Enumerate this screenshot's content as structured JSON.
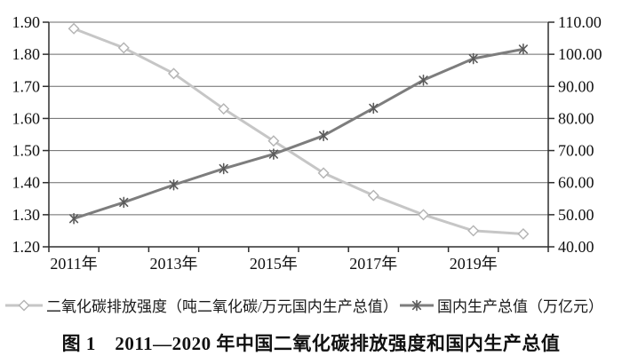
{
  "figure": {
    "caption": "图 1　2011—2020 年中国二氧化碳排放强度和国内生产总值"
  },
  "legend": {
    "items": [
      {
        "label": "二氧化碳排放强度（吨二氧化碳/万元国内生产总值）",
        "marker": "diamond",
        "line_color": "#c6c6c6",
        "marker_color": "#b3b3b3",
        "marker_fill": "#ffffff"
      },
      {
        "label": "国内生产总值（万亿元）",
        "marker": "asterisk",
        "line_color": "#7d7d7d",
        "marker_color": "#5a5a5a"
      }
    ]
  },
  "chart_data": {
    "type": "line",
    "categories": [
      "2011年",
      "2012年",
      "2013年",
      "2014年",
      "2015年",
      "2016年",
      "2017年",
      "2018年",
      "2019年",
      "2020年"
    ],
    "x_labels": [
      "2011年",
      "2013年",
      "2015年",
      "2017年",
      "2019年"
    ],
    "x_label_every": 2,
    "series": [
      {
        "name": "二氧化碳排放强度（吨二氧化碳/万元国内生产总值）",
        "axis": "left",
        "marker": "diamond",
        "color": "#c6c6c6",
        "marker_color": "#b3b3b3",
        "marker_fill": "#ffffff",
        "values": [
          1.88,
          1.82,
          1.74,
          1.63,
          1.53,
          1.43,
          1.36,
          1.3,
          1.25,
          1.24
        ]
      },
      {
        "name": "国内生产总值（万亿元）",
        "axis": "right",
        "marker": "asterisk",
        "color": "#7d7d7d",
        "marker_color": "#5a5a5a",
        "values": [
          48.79,
          53.86,
          59.3,
          64.36,
          68.89,
          74.64,
          83.2,
          91.93,
          98.65,
          101.6
        ]
      }
    ],
    "left_axis": {
      "min": 1.2,
      "max": 1.9,
      "tick_labels": [
        "1.20",
        "1.30",
        "1.40",
        "1.50",
        "1.60",
        "1.70",
        "1.80",
        "1.90"
      ]
    },
    "right_axis": {
      "min": 40,
      "max": 110,
      "tick_labels": [
        "40.00",
        "50.00",
        "60.00",
        "70.00",
        "80.00",
        "90.00",
        "100.00",
        "110.00"
      ]
    },
    "grid": true,
    "legend_position": "bottom",
    "colors": {
      "grid": "#6a6a6a",
      "axis": "#2e2e2e",
      "text": "#111111"
    }
  }
}
